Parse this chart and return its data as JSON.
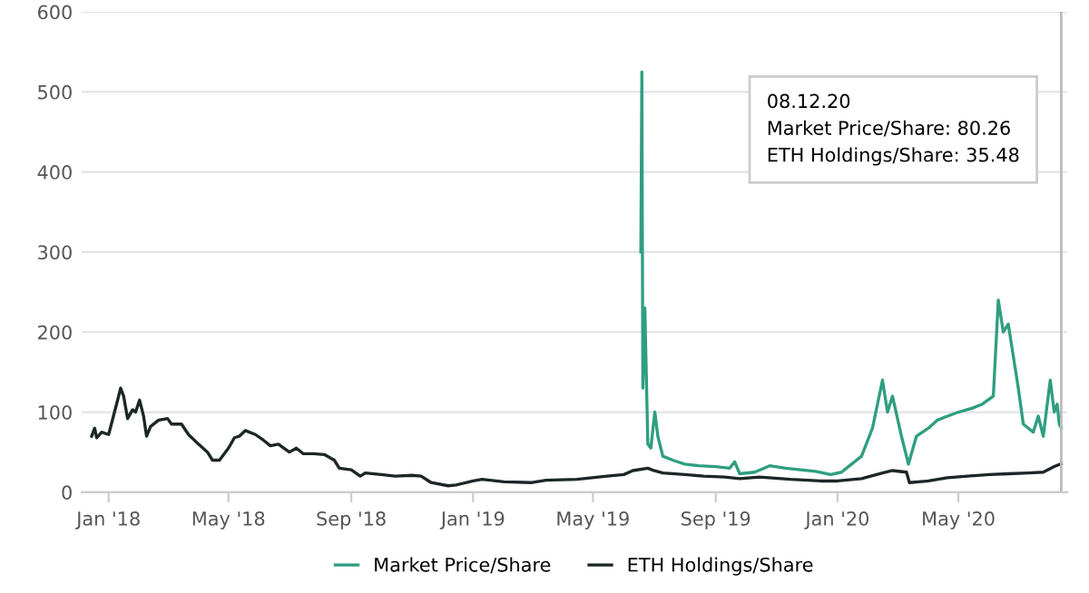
{
  "chart_data": {
    "type": "line",
    "xlim": [
      "2017-12-05",
      "2020-08-18"
    ],
    "xticks": [
      {
        "value": "2018-01-01",
        "label": "Jan '18"
      },
      {
        "value": "2018-05-01",
        "label": "May '18"
      },
      {
        "value": "2018-09-01",
        "label": "Sep '18"
      },
      {
        "value": "2019-01-01",
        "label": "Jan '19"
      },
      {
        "value": "2019-05-01",
        "label": "May '19"
      },
      {
        "value": "2019-09-01",
        "label": "Sep '19"
      },
      {
        "value": "2020-01-01",
        "label": "Jan '20"
      },
      {
        "value": "2020-05-01",
        "label": "May '20"
      }
    ],
    "ylim": [
      0,
      600
    ],
    "yticks": [
      0,
      100,
      200,
      300,
      400,
      500,
      600
    ],
    "grid": "y",
    "legend": "bottom",
    "ref_lines": [
      {
        "axis": "x",
        "value": "2020-08-12",
        "color": "#bbbbbb"
      }
    ],
    "annotations": [
      "08.12.20",
      "Market Price/Share: 80.26",
      "ETH Holdings/Share: 35.48"
    ],
    "series": [
      {
        "name": "Market Price/Share",
        "color": "#2f9e80",
        "x": [
          "2019-06-18",
          "2019-06-19",
          "2019-06-20",
          "2019-06-22",
          "2019-06-25",
          "2019-06-28",
          "2019-07-02",
          "2019-07-05",
          "2019-07-10",
          "2019-07-20",
          "2019-08-01",
          "2019-08-15",
          "2019-09-01",
          "2019-09-15",
          "2019-09-20",
          "2019-09-25",
          "2019-10-10",
          "2019-10-25",
          "2019-11-10",
          "2019-11-25",
          "2019-12-10",
          "2019-12-25",
          "2020-01-05",
          "2020-01-15",
          "2020-01-25",
          "2020-02-05",
          "2020-02-15",
          "2020-02-20",
          "2020-02-25",
          "2020-03-05",
          "2020-03-12",
          "2020-03-20",
          "2020-04-01",
          "2020-04-10",
          "2020-04-20",
          "2020-05-01",
          "2020-05-15",
          "2020-05-25",
          "2020-06-05",
          "2020-06-10",
          "2020-06-15",
          "2020-06-20",
          "2020-06-30",
          "2020-07-05",
          "2020-07-15",
          "2020-07-20",
          "2020-07-25",
          "2020-08-01",
          "2020-08-05",
          "2020-08-08",
          "2020-08-10",
          "2020-08-12"
        ],
        "values": [
          300,
          525,
          130,
          230,
          60,
          55,
          100,
          70,
          45,
          40,
          35,
          33,
          32,
          30,
          38,
          23,
          25,
          33,
          30,
          28,
          26,
          22,
          25,
          35,
          45,
          80,
          140,
          100,
          120,
          70,
          35,
          70,
          80,
          90,
          95,
          100,
          105,
          110,
          120,
          240,
          200,
          210,
          130,
          85,
          75,
          95,
          70,
          140,
          100,
          110,
          85,
          80.26
        ]
      },
      {
        "name": "ETH Holdings/Share",
        "color": "#1c2626",
        "x": [
          "2017-12-15",
          "2017-12-18",
          "2017-12-20",
          "2017-12-25",
          "2018-01-01",
          "2018-01-10",
          "2018-01-13",
          "2018-01-16",
          "2018-01-20",
          "2018-01-25",
          "2018-01-28",
          "2018-02-01",
          "2018-02-05",
          "2018-02-08",
          "2018-02-12",
          "2018-02-20",
          "2018-03-01",
          "2018-03-05",
          "2018-03-15",
          "2018-03-22",
          "2018-04-01",
          "2018-04-10",
          "2018-04-15",
          "2018-04-22",
          "2018-05-01",
          "2018-05-07",
          "2018-05-12",
          "2018-05-18",
          "2018-05-28",
          "2018-06-05",
          "2018-06-12",
          "2018-06-20",
          "2018-07-01",
          "2018-07-08",
          "2018-07-15",
          "2018-07-25",
          "2018-08-05",
          "2018-08-15",
          "2018-08-20",
          "2018-09-01",
          "2018-09-10",
          "2018-09-15",
          "2018-10-01",
          "2018-10-15",
          "2018-11-01",
          "2018-11-10",
          "2018-11-20",
          "2018-12-07",
          "2018-12-15",
          "2019-01-01",
          "2019-01-10",
          "2019-02-01",
          "2019-03-01",
          "2019-03-15",
          "2019-04-15",
          "2019-05-15",
          "2019-06-01",
          "2019-06-10",
          "2019-06-25",
          "2019-07-01",
          "2019-07-10",
          "2019-08-01",
          "2019-08-20",
          "2019-09-10",
          "2019-09-25",
          "2019-10-15",
          "2019-11-15",
          "2019-12-15",
          "2020-01-01",
          "2020-01-25",
          "2020-02-15",
          "2020-02-25",
          "2020-03-10",
          "2020-03-13",
          "2020-04-01",
          "2020-04-20",
          "2020-05-10",
          "2020-06-01",
          "2020-06-20",
          "2020-07-10",
          "2020-07-25",
          "2020-08-05",
          "2020-08-12"
        ],
        "values": [
          70,
          80,
          68,
          75,
          72,
          115,
          130,
          120,
          92,
          103,
          100,
          115,
          95,
          70,
          82,
          90,
          92,
          85,
          85,
          72,
          60,
          50,
          40,
          40,
          55,
          68,
          70,
          77,
          72,
          65,
          58,
          60,
          50,
          55,
          48,
          48,
          47,
          40,
          30,
          28,
          20,
          24,
          22,
          20,
          21,
          20,
          12,
          8,
          9,
          14,
          16,
          13,
          12,
          15,
          16,
          20,
          22,
          27,
          30,
          27,
          24,
          22,
          20,
          19,
          17,
          19,
          16,
          14,
          14,
          17,
          24,
          27,
          25,
          12,
          14,
          18,
          20,
          22,
          23,
          24,
          25,
          32,
          35.48
        ]
      }
    ]
  }
}
